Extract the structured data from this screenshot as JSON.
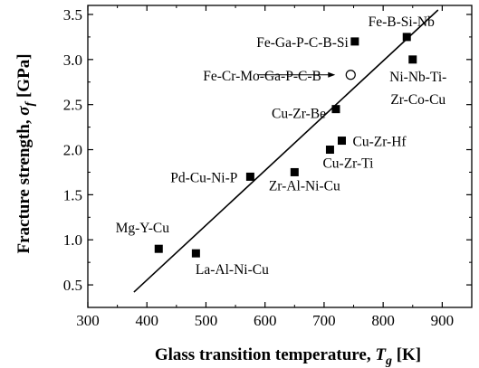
{
  "chart_data": {
    "type": "scatter",
    "xlabel": "Glass transition temperature, T_g [K]",
    "ylabel": "Fracture strength, σ_f [GPa]",
    "xlabel_parts": {
      "main": "Glass transition temperature, ",
      "sym": "T",
      "sub": "g",
      "unit": " [K]"
    },
    "ylabel_parts": {
      "main": "Fracture strength, ",
      "sym": "σ",
      "sub": "f",
      "unit": " [GPa]"
    },
    "xlim": [
      300,
      950
    ],
    "ylim": [
      0.25,
      3.6
    ],
    "x_ticks": [
      300,
      400,
      500,
      600,
      700,
      800,
      900
    ],
    "x_tick_labels": [
      "300",
      "400",
      "500",
      "600",
      "700",
      "800",
      "900"
    ],
    "y_ticks": [
      0.5,
      1.0,
      1.5,
      2.0,
      2.5,
      3.0,
      3.5
    ],
    "y_tick_labels": [
      "0.5",
      "1.0",
      "1.5",
      "2.0",
      "2.5",
      "3.0",
      "3.5"
    ],
    "grid": false,
    "legend": "none",
    "series": [
      {
        "marker": "filled-square",
        "points": [
          {
            "label": "Mg-Y-Cu",
            "x": 420,
            "y": 0.9
          },
          {
            "label": "La-Al-Ni-Cu",
            "x": 483,
            "y": 0.85
          },
          {
            "label": "Pd-Cu-Ni-P",
            "x": 575,
            "y": 1.7
          },
          {
            "label": "Zr-Al-Ni-Cu",
            "x": 650,
            "y": 1.75
          },
          {
            "label": "Cu-Zr-Ti",
            "x": 710,
            "y": 2.0
          },
          {
            "label": "Cu-Zr-Hf",
            "x": 730,
            "y": 2.1
          },
          {
            "label": "Cu-Zr-Be",
            "x": 720,
            "y": 2.45
          },
          {
            "label": "Fe-Ga-P-C-B-Si",
            "x": 752,
            "y": 3.2
          },
          {
            "label": "Fe-B-Si-Nb",
            "x": 840,
            "y": 3.25
          },
          {
            "label": "Ni-Nb-Ti-Zr-Co-Cu",
            "x": 850,
            "y": 3.0
          }
        ]
      },
      {
        "marker": "open-circle",
        "points": [
          {
            "label": "Fe-Cr-Mo-Ga-P-C-B",
            "x": 745,
            "y": 2.83
          }
        ]
      }
    ],
    "fit_line": {
      "x": [
        378,
        893
      ],
      "y": [
        0.42,
        3.55
      ]
    }
  }
}
